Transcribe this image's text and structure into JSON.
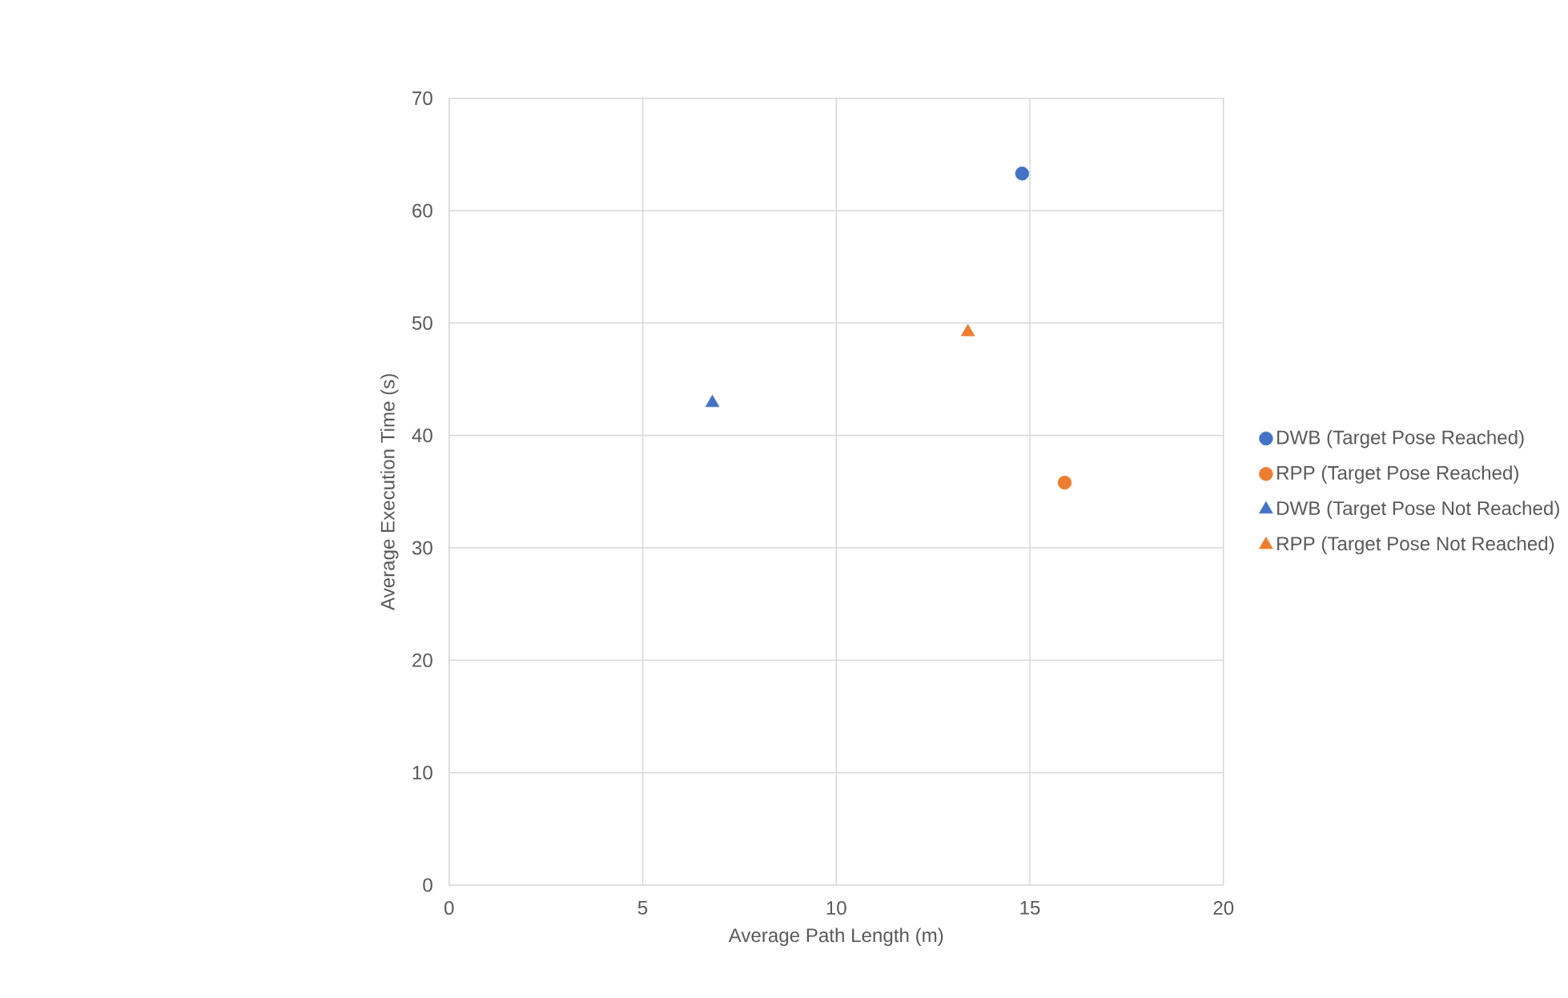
{
  "chart_data": {
    "type": "scatter",
    "xlabel": "Average Path Length (m)",
    "ylabel": "Average Execution Time (s)",
    "xlim": [
      0,
      20
    ],
    "xticks": [
      0,
      5,
      10,
      15,
      20
    ],
    "ylim": [
      0,
      70
    ],
    "yticks": [
      0,
      10,
      20,
      30,
      40,
      50,
      60,
      70
    ],
    "grid": true,
    "legend": "right",
    "series": [
      {
        "name": "DWB (Target Pose Reached)",
        "color": "#4472c4",
        "marker": "circle",
        "x": [
          14.8
        ],
        "values": [
          63.3
        ]
      },
      {
        "name": "RPP (Target Pose Reached)",
        "color": "#ed7d31",
        "marker": "circle",
        "x": [
          15.9
        ],
        "values": [
          35.8
        ]
      },
      {
        "name": "DWB (Target Pose Not Reached)",
        "color": "#4472c4",
        "marker": "triangle",
        "x": [
          6.8
        ],
        "values": [
          42.9
        ]
      },
      {
        "name": "RPP (Target Pose Not Reached)",
        "color": "#ed7d31",
        "marker": "triangle",
        "x": [
          13.4
        ],
        "values": [
          49.2
        ]
      }
    ]
  }
}
